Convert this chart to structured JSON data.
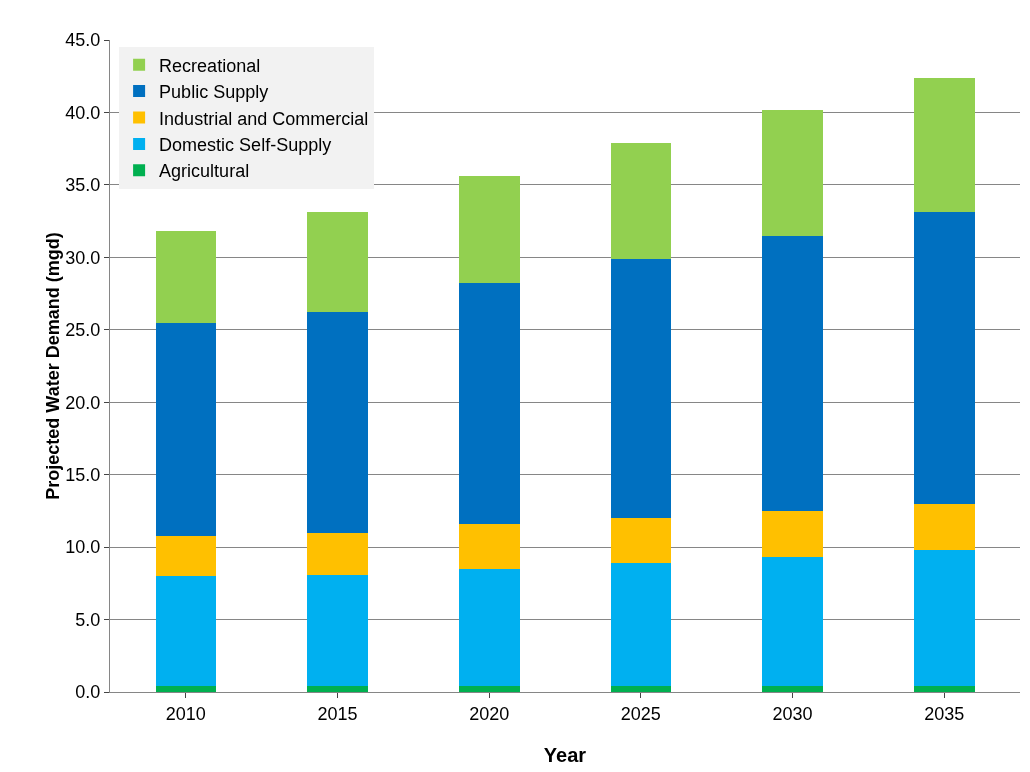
{
  "chart_data": {
    "type": "bar",
    "stacked": true,
    "xlabel": "Year",
    "ylabel": "Projected Water Demand (mgd)",
    "categories": [
      "2010",
      "2015",
      "2020",
      "2025",
      "2030",
      "2035"
    ],
    "series": [
      {
        "name": "Agricultural",
        "color": "#00b050",
        "values": [
          0.4,
          0.4,
          0.4,
          0.4,
          0.4,
          0.4
        ]
      },
      {
        "name": "Domestic Self-Supply",
        "color": "#00b0f0",
        "values": [
          7.6,
          7.7,
          8.1,
          8.5,
          8.9,
          9.4
        ]
      },
      {
        "name": "Industrial and Commercial",
        "color": "#ffc000",
        "values": [
          2.8,
          2.9,
          3.1,
          3.1,
          3.2,
          3.2
        ]
      },
      {
        "name": "Public Supply",
        "color": "#0070c0",
        "values": [
          14.7,
          15.2,
          16.6,
          17.9,
          19.0,
          20.1
        ]
      },
      {
        "name": "Recreational",
        "color": "#92d050",
        "values": [
          6.3,
          6.9,
          7.4,
          8.0,
          8.7,
          9.3
        ]
      }
    ],
    "ylim": [
      0,
      45
    ],
    "yticks": [
      {
        "value": 0,
        "label": "0.0"
      },
      {
        "value": 5,
        "label": "5.0"
      },
      {
        "value": 10,
        "label": "10.0"
      },
      {
        "value": 15,
        "label": "15.0"
      },
      {
        "value": 20,
        "label": "20.0"
      },
      {
        "value": 25,
        "label": "25.0"
      },
      {
        "value": 30,
        "label": "30.0"
      },
      {
        "value": 35,
        "label": "35.0"
      },
      {
        "value": 40,
        "label": "40.0"
      },
      {
        "value": 45,
        "label": "45.0"
      }
    ],
    "grid": "y",
    "legend": "top left"
  }
}
